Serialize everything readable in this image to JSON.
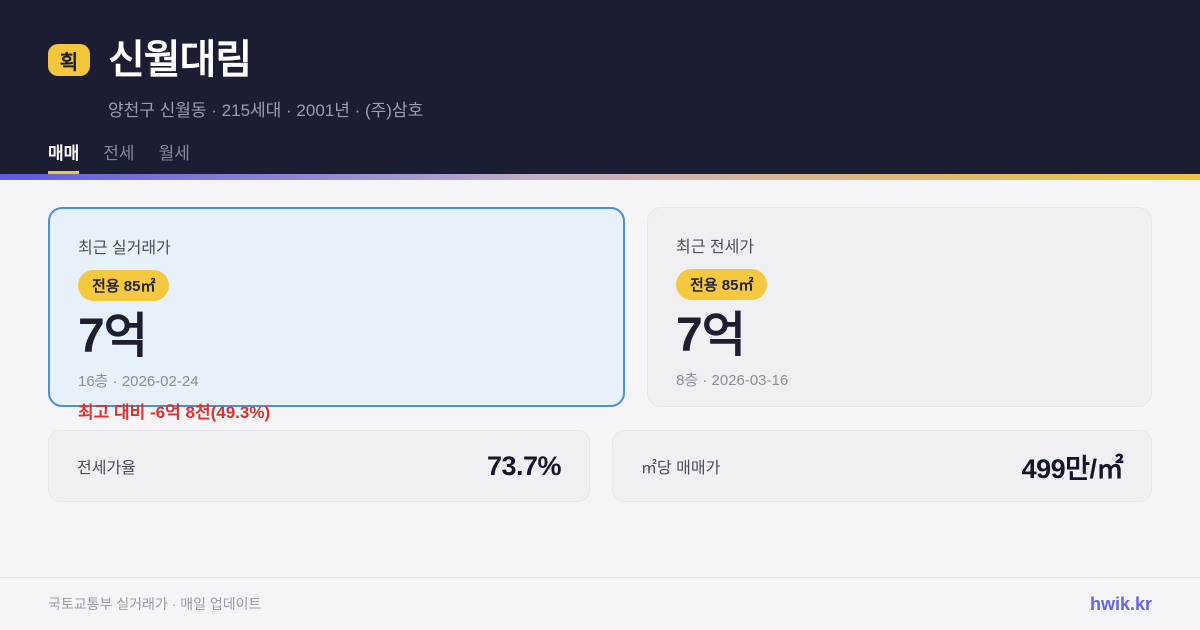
{
  "theme": {
    "header_bg": "#1b1d33",
    "accent_yellow": "#f3c63b",
    "highlight_card_border": "#4a8fd8",
    "highlight_card_bg": "#e7f1fc",
    "delta_red": "#e0312e",
    "brand_color": "#6264ee",
    "gradient": [
      "#5a5ce2",
      "#eec63f"
    ]
  },
  "header": {
    "badge_label": "획",
    "title": "신월대림",
    "subtitle": "양천구 신월동 · 215세대 · 2001년 · (주)삼호",
    "tabs": [
      {
        "label": "매매",
        "active": true
      },
      {
        "label": "전세",
        "active": false
      },
      {
        "label": "월세",
        "active": false
      }
    ]
  },
  "price_cards": [
    {
      "label": "최근 실거래가",
      "area_badge": "전용 85㎡",
      "price": "7억",
      "meta": "16층 · 2026-02-24",
      "delta": "최고 대비 -6억 8천(49.3%)"
    },
    {
      "label": "최근 전세가",
      "area_badge": "전용 85㎡",
      "price": "7억",
      "meta": "8층 · 2026-03-16"
    }
  ],
  "stats": [
    {
      "label": "전세가율",
      "value": "73.7%"
    },
    {
      "label": "㎡당 매매가",
      "value": "499만/㎡"
    }
  ],
  "footer": {
    "source": "국토교통부 실거래가 · 매일 업데이트",
    "brand": "hwik.kr"
  }
}
